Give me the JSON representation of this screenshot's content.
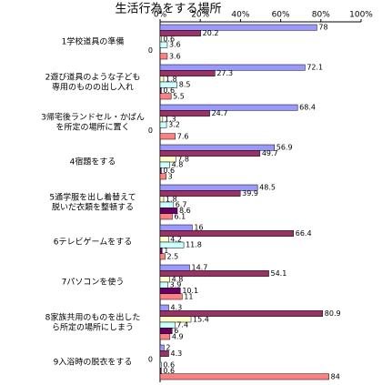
{
  "chart_data": {
    "type": "bar",
    "orientation": "horizontal",
    "title": "生活行為をする場所",
    "categories": [
      "1学校道具の準備",
      "2遊び道具のような子ども\n専用のものの出し入れ",
      "3帰宅後ランドセル・かばん\nを所定の場所に置く",
      "4宿題をする",
      "5通学服を出し着替えて\n脱いだ衣類を整頓する",
      "6テレビゲームをする",
      "7パソコンを使う",
      "8家族共用のものを出した\nら所定の場所にしまう",
      "9入浴時の脱衣をする"
    ],
    "series": [
      {
        "color": "#9999ff",
        "values": [
          78,
          72.1,
          68.4,
          56.9,
          48.5,
          16,
          14.7,
          4.3,
          2
        ]
      },
      {
        "color": "#993366",
        "values": [
          20.2,
          27.3,
          24.7,
          49.7,
          39.9,
          66.4,
          54.1,
          80.9,
          4.3
        ]
      },
      {
        "color": "#ffffcc",
        "values": [
          0.6,
          1.8,
          1.3,
          7.8,
          1.8,
          4.2,
          4.8,
          15.4,
          0
        ]
      },
      {
        "color": "#ccffff",
        "values": [
          3.6,
          8.5,
          3.2,
          4.8,
          6.7,
          11.8,
          3.9,
          7.4,
          0.6
        ]
      },
      {
        "color": "#660066",
        "values": [
          0,
          0.6,
          0,
          0.6,
          8.6,
          1,
          10.1,
          6,
          0.6
        ]
      },
      {
        "color": "#ff8080",
        "values": [
          3.6,
          5.5,
          7.6,
          3,
          6.1,
          2.5,
          11,
          4.9,
          84
        ]
      }
    ],
    "xlim": [
      0,
      100
    ],
    "xticks": [
      {
        "value": 0,
        "label": "0%"
      },
      {
        "value": 20,
        "label": "20%"
      },
      {
        "value": 40,
        "label": "40%"
      },
      {
        "value": 60,
        "label": "60%"
      },
      {
        "value": 80,
        "label": "80%"
      },
      {
        "value": 100,
        "label": "100%"
      }
    ],
    "grid": false
  }
}
